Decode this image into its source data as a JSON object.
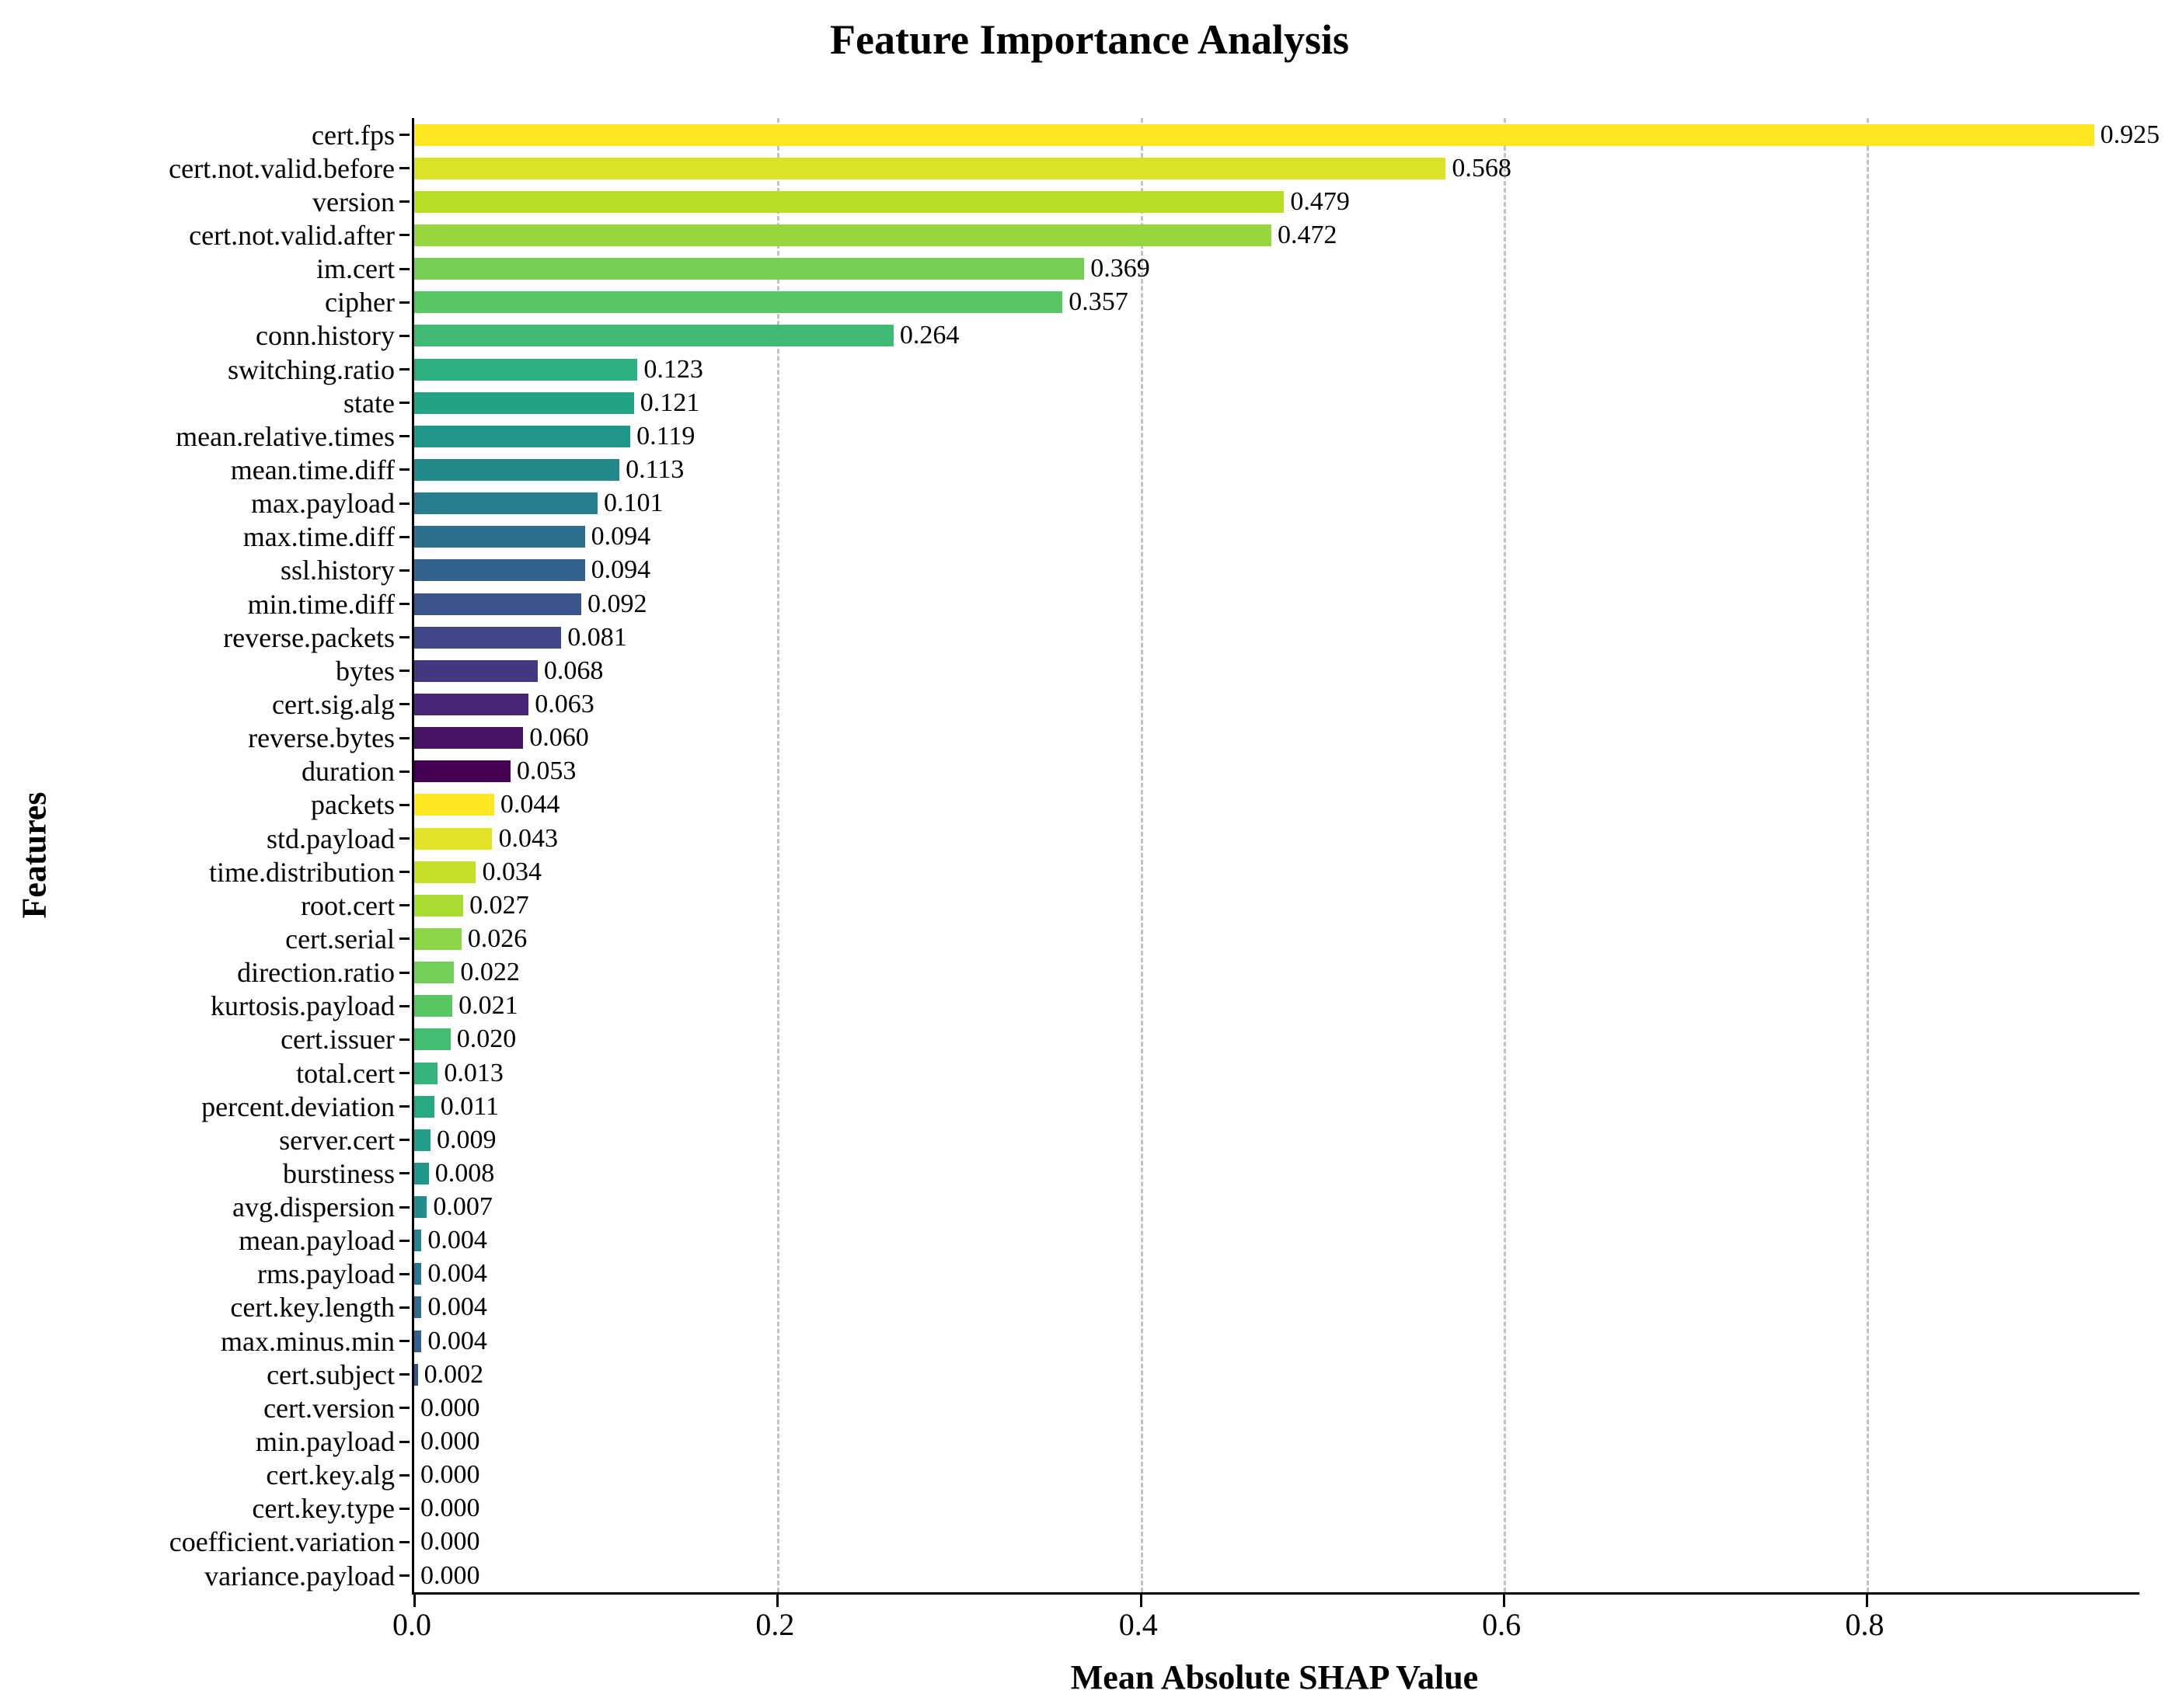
{
  "chart_data": {
    "type": "bar",
    "orientation": "horizontal",
    "title": "Feature Importance Analysis",
    "xlabel": "Mean Absolute SHAP Value",
    "ylabel": "Features",
    "xlim": [
      0,
      0.95
    ],
    "grid": "vertical dashed gridlines at major x ticks",
    "legend": "none",
    "x_tick_values": [
      0,
      0.2,
      0.4,
      0.6,
      0.8
    ],
    "x_tick_labels": [
      "0.0",
      "0.2",
      "0.4",
      "0.6",
      "0.8"
    ],
    "categories": [
      "cert.fps",
      "cert.not.valid.before",
      "version",
      "cert.not.valid.after",
      "im.cert",
      "cipher",
      "conn.history",
      "switching.ratio",
      "state",
      "mean.relative.times",
      "mean.time.diff",
      "max.payload",
      "max.time.diff",
      "ssl.history",
      "min.time.diff",
      "reverse.packets",
      "bytes",
      "cert.sig.alg",
      "reverse.bytes",
      "duration",
      "packets",
      "std.payload",
      "time.distribution",
      "root.cert",
      "cert.serial",
      "direction.ratio",
      "kurtosis.payload",
      "cert.issuer",
      "total.cert",
      "percent.deviation",
      "server.cert",
      "burstiness",
      "avg.dispersion",
      "mean.payload",
      "rms.payload",
      "cert.key.length",
      "max.minus.min",
      "cert.subject",
      "cert.version",
      "min.payload",
      "cert.key.alg",
      "cert.key.type",
      "coefficient.variation",
      "variance.payload"
    ],
    "values": [
      0.925,
      0.568,
      0.479,
      0.472,
      0.369,
      0.357,
      0.264,
      0.123,
      0.121,
      0.119,
      0.113,
      0.101,
      0.094,
      0.094,
      0.092,
      0.081,
      0.068,
      0.063,
      0.06,
      0.053,
      0.044,
      0.043,
      0.034,
      0.027,
      0.026,
      0.022,
      0.021,
      0.02,
      0.013,
      0.011,
      0.009,
      0.008,
      0.007,
      0.004,
      0.004,
      0.004,
      0.004,
      0.002,
      0.0,
      0.0,
      0.0,
      0.0,
      0.0,
      0.0
    ],
    "value_labels": [
      "0.925",
      "0.568",
      "0.479",
      "0.472",
      "0.369",
      "0.357",
      "0.264",
      "0.123",
      "0.121",
      "0.119",
      "0.113",
      "0.101",
      "0.094",
      "0.094",
      "0.092",
      "0.081",
      "0.068",
      "0.063",
      "0.060",
      "0.053",
      "0.044",
      "0.043",
      "0.034",
      "0.027",
      "0.026",
      "0.022",
      "0.021",
      "0.020",
      "0.013",
      "0.011",
      "0.009",
      "0.008",
      "0.007",
      "0.004",
      "0.004",
      "0.004",
      "0.004",
      "0.002",
      "0.000",
      "0.000",
      "0.000",
      "0.000",
      "0.000",
      "0.000"
    ],
    "colors": [
      "#FDE725",
      "#DBE326",
      "#B9DE28",
      "#96D73F",
      "#74CF54",
      "#58C665",
      "#3FBB73",
      "#2DAF7E",
      "#22A386",
      "#21978A",
      "#238A8C",
      "#287D8E",
      "#2D708E",
      "#33638D",
      "#39558B",
      "#404788",
      "#44377F",
      "#482676",
      "#461365",
      "#440154",
      "#FDE725",
      "#E1E426",
      "#C5E026",
      "#A9DB33",
      "#8BD546",
      "#71CE56",
      "#59C664",
      "#43BE71",
      "#34B47A",
      "#25AA82",
      "#22A087",
      "#21968A",
      "#238C8C",
      "#27818D",
      "#2B768E",
      "#306B8D",
      "#35608D",
      "#3A548B",
      "#3F4988",
      "#433C82",
      "#462E7A",
      "#471F71",
      "#461062",
      "#440154"
    ],
    "gridline_color": "#c3c3c3",
    "axis_color": "#000000",
    "background_color": "#ffffff"
  }
}
